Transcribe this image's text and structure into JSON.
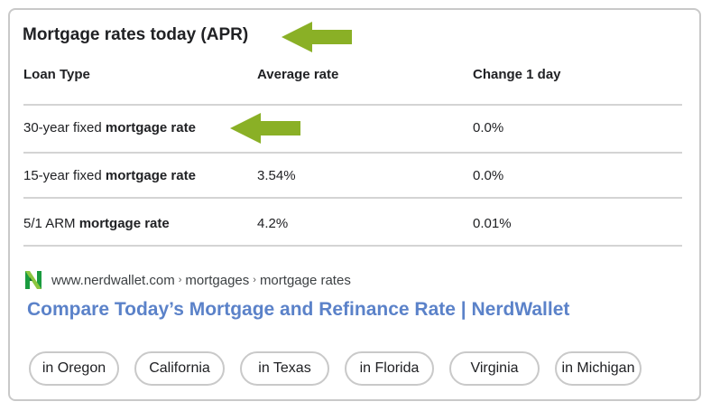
{
  "title": "Mortgage rates today (APR)",
  "headers": [
    "Loan Type",
    "Average rate",
    "Change 1 day"
  ],
  "rows": [
    {
      "plain": "30-year fixed ",
      "bold": "mortgage rate",
      "rate": "",
      "change": "0.0%"
    },
    {
      "plain": "15-year fixed ",
      "bold": "mortgage rate",
      "rate": "3.54%",
      "change": "0.0%"
    },
    {
      "plain": "5/1 ARM ",
      "bold": "mortgage rate",
      "rate": "4.2%",
      "change": "0.01%"
    }
  ],
  "source": {
    "domain": "www.nerdwallet.com",
    "sep": "›",
    "crumb1": "mortgages",
    "crumb2": "mortgage rates",
    "logo": "nerdwallet-logo"
  },
  "result_link": "Compare Today’s Mortgage and Refinance Rate | NerdWallet",
  "chips": [
    "in Oregon",
    "California",
    "in Texas",
    "in Florida",
    "Virginia",
    "in Michigan"
  ],
  "colors": {
    "arrow": "#8ab026",
    "link": "#5b82c9",
    "logo_green": "#1a9b3f",
    "border": "#c9c9c9"
  },
  "icons": {
    "arrow": "left-arrow-icon"
  }
}
